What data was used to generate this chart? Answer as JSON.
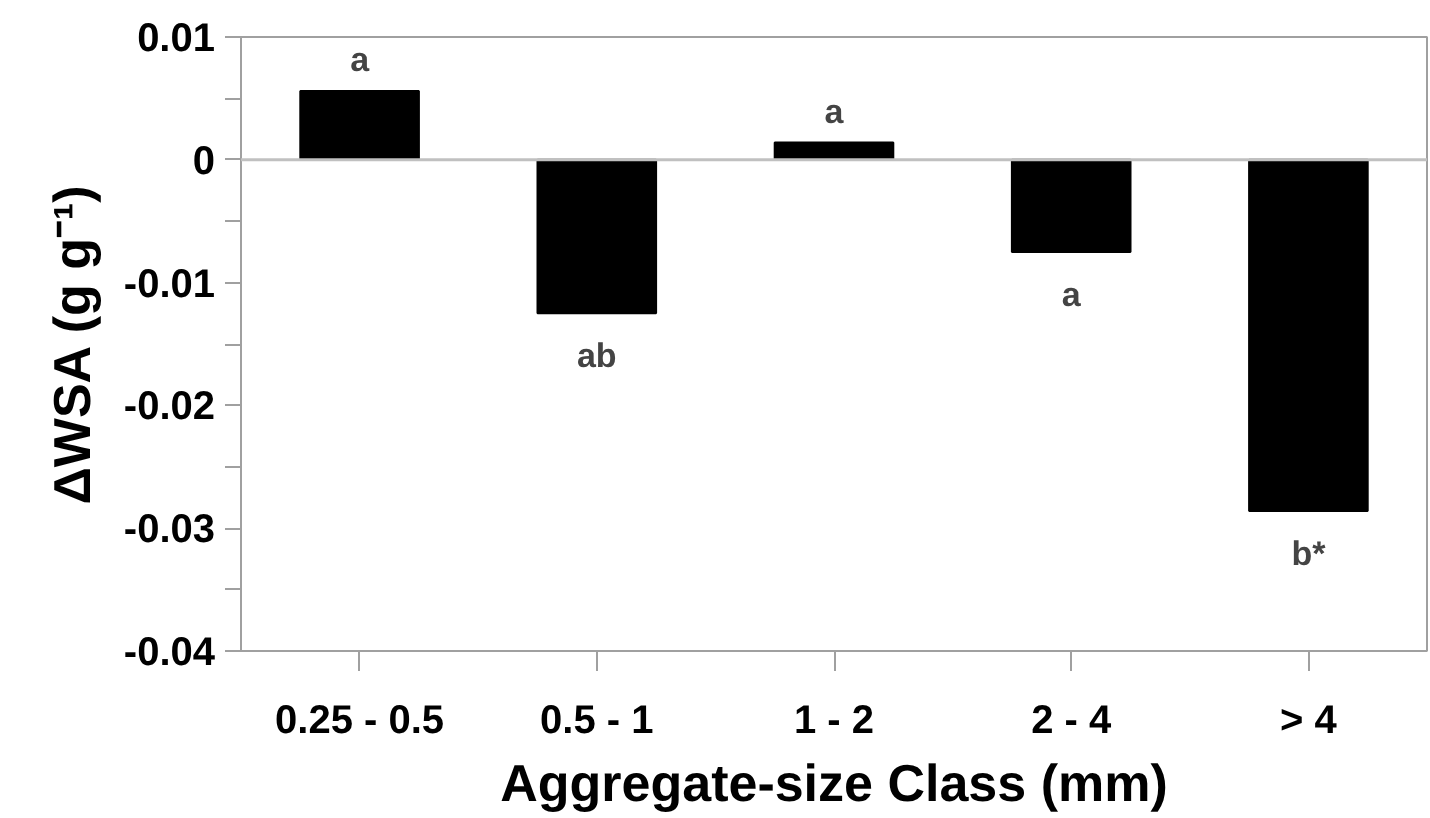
{
  "chart_data": {
    "type": "bar",
    "xlabel": "Aggregate-size Class (mm)",
    "ylabel": "ΔWSA (g g⁻¹)",
    "categories": [
      "0.25 - 0.5",
      "0.5 - 1",
      "1 - 2",
      "2 - 4",
      "> 4"
    ],
    "values": [
      0.0056,
      -0.0125,
      0.0014,
      -0.0075,
      -0.0286
    ],
    "color": "#000000",
    "ylim": [
      -0.04,
      0.01
    ],
    "yticks": [
      {
        "value": -0.04,
        "label": "-0.04"
      },
      {
        "value": -0.035,
        "label": null
      },
      {
        "value": -0.03,
        "label": "-0.03"
      },
      {
        "value": -0.025,
        "label": null
      },
      {
        "value": -0.02,
        "label": "-0.02"
      },
      {
        "value": -0.015,
        "label": null
      },
      {
        "value": -0.01,
        "label": "-0.01"
      },
      {
        "value": -0.005,
        "label": null
      },
      {
        "value": 0,
        "label": "0"
      },
      {
        "value": 0.005,
        "label": null
      },
      {
        "value": 0.01,
        "label": "0.01"
      }
    ],
    "ref_lines": [
      {
        "axis": "y",
        "value": 0,
        "color": "#c0c0c0"
      }
    ],
    "annotations": [
      "a",
      "ab",
      "a",
      "a",
      "b*"
    ],
    "grid": false
  }
}
